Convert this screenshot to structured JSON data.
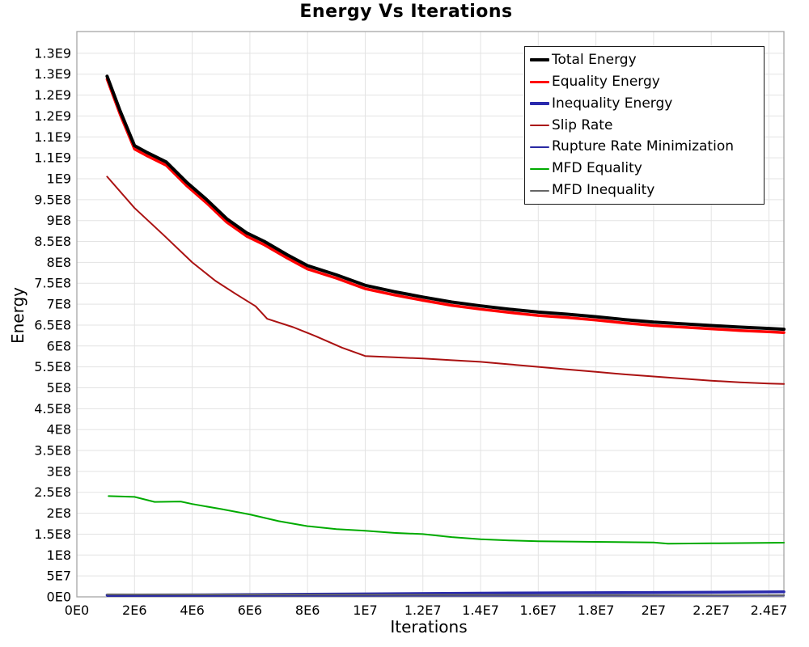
{
  "figure": {
    "background": "#ffffff",
    "frame_color": "#a6a6a6",
    "grid_color": "#e3e3e3"
  },
  "chart_data": {
    "type": "line",
    "title": "Energy Vs Iterations",
    "xlabel": "Iterations",
    "ylabel": "Energy",
    "xlim": [
      0,
      24520000
    ],
    "ylim": [
      0,
      1352000000
    ],
    "grid": true,
    "legend_position": "top-right",
    "xtick_values": [
      0,
      2000000,
      4000000,
      6000000,
      8000000,
      10000000,
      12000000,
      14000000,
      16000000,
      18000000,
      20000000,
      22000000,
      24000000
    ],
    "xtick_labels": [
      "0E0",
      "2E6",
      "4E6",
      "6E6",
      "8E6",
      "1E7",
      "1.2E7",
      "1.4E7",
      "1.6E7",
      "1.8E7",
      "2E7",
      "2.2E7",
      "2.4E7"
    ],
    "ytick_values": [
      0,
      50000000,
      100000000,
      150000000,
      200000000,
      250000000,
      300000000,
      350000000,
      400000000,
      450000000,
      500000000,
      550000000,
      600000000,
      650000000,
      700000000,
      750000000,
      800000000,
      850000000,
      900000000,
      950000000,
      1000000000,
      1050000000,
      1100000000,
      1150000000,
      1200000000,
      1250000000,
      1300000000
    ],
    "ytick_labels": [
      "0E0",
      "5E7",
      "1E8",
      "1.5E8",
      "2E8",
      "2.5E8",
      "3E8",
      "3.5E8",
      "4E8",
      "4.5E8",
      "5E8",
      "5.5E8",
      "6E8",
      "6.5E8",
      "7E8",
      "7.5E8",
      "8E8",
      "8.5E8",
      "9E8",
      "9.5E8",
      "1E9",
      "1.1E9",
      "1.1E9",
      "1.2E9",
      "1.2E9",
      "1.3E9",
      "1.3E9"
    ],
    "draw_order": [
      1,
      0,
      2,
      3,
      4,
      5,
      6
    ],
    "series": [
      {
        "name": "Total Energy",
        "color": "#000000",
        "width": 4,
        "points": [
          [
            1050000.0,
            1245000000.0
          ],
          [
            1500000.0,
            1162000000.0
          ],
          [
            2000000.0,
            1079000000.0
          ],
          [
            2400000.0,
            1064000000.0
          ],
          [
            3100000.0,
            1040000000.0
          ],
          [
            3800000.0,
            992000000.0
          ],
          [
            4500000.0,
            950000000.0
          ],
          [
            5200000.0,
            904000000.0
          ],
          [
            5900000.0,
            870000000.0
          ],
          [
            6500000.0,
            850000000.0
          ],
          [
            7300000.0,
            818000000.0
          ],
          [
            8000000.0,
            792000000.0
          ],
          [
            9000000.0,
            770000000.0
          ],
          [
            10000000.0,
            745000000.0
          ],
          [
            11000000.0,
            730000000.0
          ],
          [
            12000000.0,
            717000000.0
          ],
          [
            13000000.0,
            705000000.0
          ],
          [
            14000000.0,
            696000000.0
          ],
          [
            15000000.0,
            688000000.0
          ],
          [
            16000000.0,
            681000000.0
          ],
          [
            17000000.0,
            676000000.0
          ],
          [
            18000000.0,
            670000000.0
          ],
          [
            19000000.0,
            663000000.0
          ],
          [
            20000000.0,
            657000000.0
          ],
          [
            21000000.0,
            653000000.0
          ],
          [
            22000000.0,
            649000000.0
          ],
          [
            23000000.0,
            645000000.0
          ],
          [
            24000000.0,
            642000000.0
          ],
          [
            24520000.0,
            640000000.0
          ]
        ]
      },
      {
        "name": "Equality Energy",
        "color": "#ff0000",
        "width": 3.5,
        "points": [
          [
            1050000.0,
            1238000000.0
          ],
          [
            1500000.0,
            1154000000.0
          ],
          [
            2000000.0,
            1071000000.0
          ],
          [
            2400000.0,
            1056000000.0
          ],
          [
            3100000.0,
            1032000000.0
          ],
          [
            3800000.0,
            984000000.0
          ],
          [
            4500000.0,
            942000000.0
          ],
          [
            5200000.0,
            896000000.0
          ],
          [
            5900000.0,
            862000000.0
          ],
          [
            6500000.0,
            842000000.0
          ],
          [
            7300000.0,
            810000000.0
          ],
          [
            8000000.0,
            784000000.0
          ],
          [
            9000000.0,
            762000000.0
          ],
          [
            10000000.0,
            737000000.0
          ],
          [
            11000000.0,
            722000000.0
          ],
          [
            12000000.0,
            709000000.0
          ],
          [
            13000000.0,
            697000000.0
          ],
          [
            14000000.0,
            688000000.0
          ],
          [
            15000000.0,
            680000000.0
          ],
          [
            16000000.0,
            673000000.0
          ],
          [
            17000000.0,
            668000000.0
          ],
          [
            18000000.0,
            662000000.0
          ],
          [
            19000000.0,
            655000000.0
          ],
          [
            20000000.0,
            649000000.0
          ],
          [
            21000000.0,
            645000000.0
          ],
          [
            22000000.0,
            641000000.0
          ],
          [
            23000000.0,
            637000000.0
          ],
          [
            24000000.0,
            634000000.0
          ],
          [
            24520000.0,
            632000000.0
          ]
        ]
      },
      {
        "name": "Inequality Energy",
        "color": "#2a2aad",
        "width": 3.5,
        "points": [
          [
            1050000.0,
            4000000.0
          ],
          [
            5000000.0,
            5000000.0
          ],
          [
            10000000.0,
            7000000.0
          ],
          [
            15000000.0,
            9000000.0
          ],
          [
            20000000.0,
            10500000.0
          ],
          [
            24520000.0,
            12000000.0
          ]
        ]
      },
      {
        "name": "Slip Rate",
        "color": "#aa1111",
        "width": 2,
        "points": [
          [
            1050000.0,
            1005000000.0
          ],
          [
            2000000.0,
            930000000.0
          ],
          [
            3000000.0,
            866000000.0
          ],
          [
            4000000.0,
            800000000.0
          ],
          [
            4800000.0,
            756000000.0
          ],
          [
            5500000.0,
            725000000.0
          ],
          [
            6200000.0,
            695000000.0
          ],
          [
            6600000.0,
            665000000.0
          ],
          [
            7500000.0,
            645000000.0
          ],
          [
            8300000.0,
            623000000.0
          ],
          [
            9200000.0,
            596000000.0
          ],
          [
            10000000.0,
            576000000.0
          ],
          [
            11000000.0,
            573000000.0
          ],
          [
            12000000.0,
            570000000.0
          ],
          [
            13000000.0,
            566000000.0
          ],
          [
            14000000.0,
            562000000.0
          ],
          [
            15000000.0,
            556000000.0
          ],
          [
            16000000.0,
            550000000.0
          ],
          [
            17000000.0,
            544000000.0
          ],
          [
            18000000.0,
            538000000.0
          ],
          [
            19000000.0,
            532000000.0
          ],
          [
            20000000.0,
            527000000.0
          ],
          [
            21000000.0,
            522000000.0
          ],
          [
            22000000.0,
            517000000.0
          ],
          [
            23000000.0,
            513000000.0
          ],
          [
            24000000.0,
            510000000.0
          ],
          [
            24520000.0,
            509000000.0
          ]
        ]
      },
      {
        "name": "Rupture Rate Minimization",
        "color": "#2929a3",
        "width": 2,
        "points": [
          [
            1050000.0,
            2000000.0
          ],
          [
            10000000.0,
            2500000.0
          ],
          [
            24520000.0,
            3000000.0
          ]
        ]
      },
      {
        "name": "MFD Equality",
        "color": "#00ab00",
        "width": 2,
        "points": [
          [
            1100000.0,
            241000000.0
          ],
          [
            2000000.0,
            239000000.0
          ],
          [
            2700000.0,
            227000000.0
          ],
          [
            3600000.0,
            228000000.0
          ],
          [
            4000000.0,
            222000000.0
          ],
          [
            5000000.0,
            210000000.0
          ],
          [
            6000000.0,
            197000000.0
          ],
          [
            7000000.0,
            181000000.0
          ],
          [
            8000000.0,
            169000000.0
          ],
          [
            9000000.0,
            162000000.0
          ],
          [
            10000000.0,
            158000000.0
          ],
          [
            11000000.0,
            153000000.0
          ],
          [
            12000000.0,
            150000000.0
          ],
          [
            13000000.0,
            143000000.0
          ],
          [
            14000000.0,
            138000000.0
          ],
          [
            15000000.0,
            135000000.0
          ],
          [
            16000000.0,
            133000000.0
          ],
          [
            18000000.0,
            131500000.0
          ],
          [
            20000000.0,
            130000000.0
          ],
          [
            20500000.0,
            127000000.0
          ],
          [
            22000000.0,
            128000000.0
          ],
          [
            24520000.0,
            129500000.0
          ]
        ]
      },
      {
        "name": "MFD Inequality",
        "color": "#666666",
        "width": 2,
        "points": [
          [
            1050000.0,
            6000000.0
          ],
          [
            8000000.0,
            5500000.0
          ],
          [
            16000000.0,
            4500000.0
          ],
          [
            24520000.0,
            4000000.0
          ]
        ]
      }
    ]
  }
}
